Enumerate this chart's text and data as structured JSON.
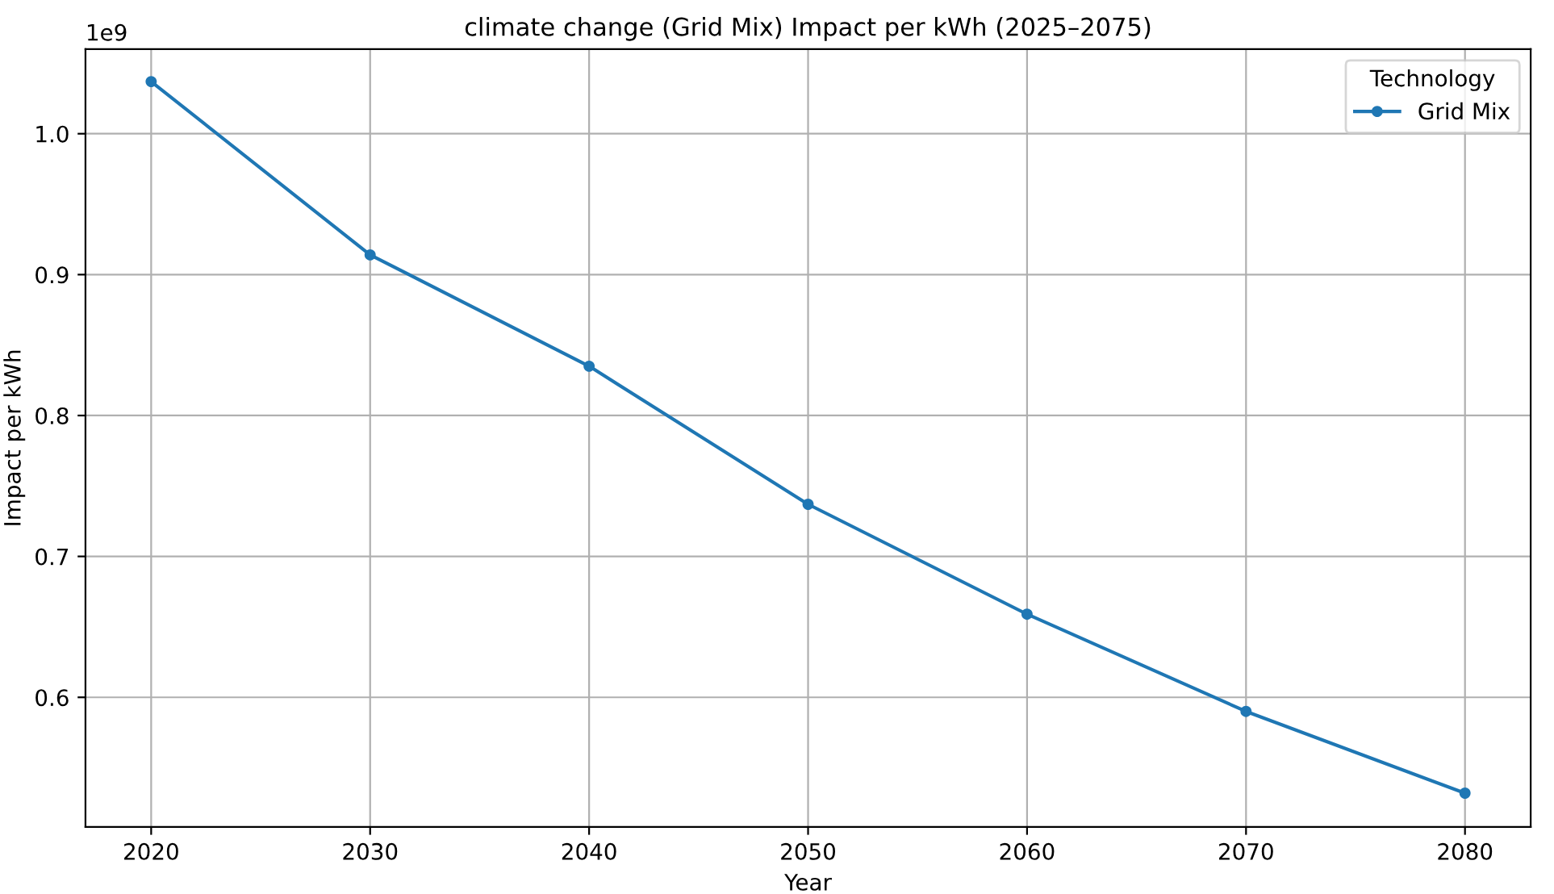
{
  "chart_data": {
    "type": "line",
    "title": "climate change (Grid Mix) Impact per kWh (2025–2075)",
    "xlabel": "Year",
    "ylabel": "Impact per kWh",
    "legend_title": "Technology",
    "x": [
      2020,
      2030,
      2040,
      2050,
      2060,
      2070,
      2080
    ],
    "series": [
      {
        "name": "Grid Mix",
        "color": "#1f77b4",
        "values": [
          1.037,
          0.914,
          0.835,
          0.737,
          0.659,
          0.59,
          0.532
        ]
      }
    ],
    "xlim": [
      2017,
      2083
    ],
    "xticks": [
      2020,
      2030,
      2040,
      2050,
      2060,
      2070,
      2080
    ],
    "ylim": [
      0.508,
      1.06
    ],
    "yticks": [
      0.6,
      0.7,
      0.8,
      0.9,
      {
        "value": 1.0,
        "label": "1.0"
      }
    ],
    "annotations": [
      "1e9"
    ],
    "grid": true,
    "legend": "top right",
    "marker": "circle",
    "line_style": "solid"
  }
}
